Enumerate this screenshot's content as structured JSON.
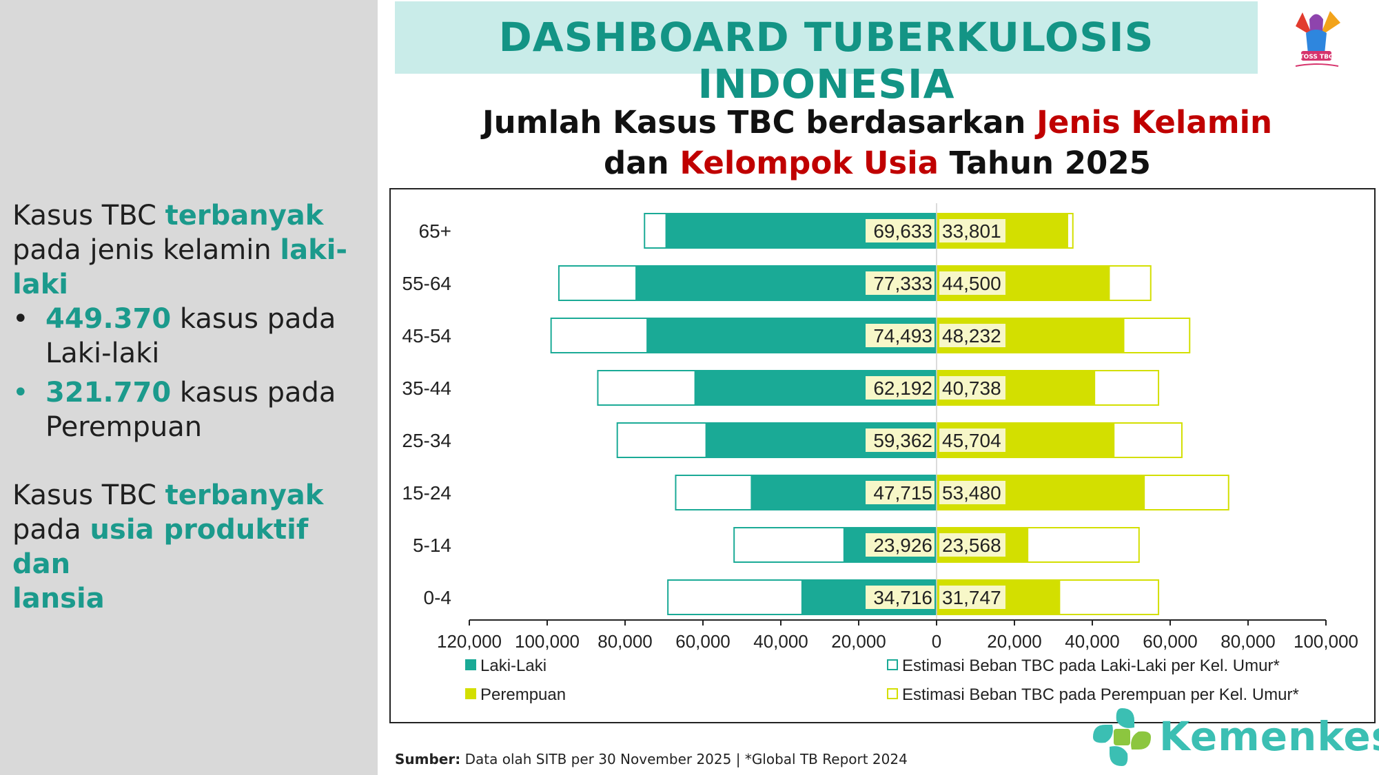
{
  "header": {
    "title": "DASHBOARD TUBERKULOSIS INDONESIA",
    "logo_text": "TOSS TBC"
  },
  "chart_heading": {
    "line1_part1": "Jumlah Kasus TBC berdasarkan ",
    "line1_part2": "Jenis Kelamin",
    "line2_part1": "dan ",
    "line2_part2": "Kelompok Usia",
    "line2_part3": " Tahun 2025"
  },
  "sidebar": {
    "p1_a": "Kasus TBC ",
    "p1_b": "terbanyak",
    "p1_c": "pada jenis kelamin ",
    "p1_d": "laki-",
    "p1_e": "laki",
    "bullet_char": "•",
    "b1_num": "449.370",
    "b1_text1": " kasus pada",
    "b1_text2": "Laki-laki",
    "b2_num": "321.770",
    "b2_text1": " kasus pada",
    "b2_text2": "Perempuan",
    "p2_a": "Kasus TBC ",
    "p2_b": "terbanyak",
    "p2_c": "pada ",
    "p2_d": "usia produktif dan",
    "p2_e": "lansia"
  },
  "chart_data": {
    "type": "bar",
    "orientation": "horizontal-population-pyramid",
    "categories": [
      "65+",
      "55-64",
      "45-54",
      "35-44",
      "25-34",
      "15-24",
      "5-14",
      "0-4"
    ],
    "series": [
      {
        "name": "Laki-Laki",
        "side": "left",
        "color": "#1aaa96",
        "values": [
          69633,
          77333,
          74493,
          62192,
          59362,
          47715,
          23926,
          34716
        ]
      },
      {
        "name": "Perempuan",
        "side": "right",
        "color": "#d3df00",
        "values": [
          33801,
          44500,
          48232,
          40738,
          45704,
          53480,
          23568,
          31747
        ]
      },
      {
        "name": "Estimasi Beban TBC pada Laki-Laki per Kel. Umur*",
        "side": "left",
        "color": "#1aaa96",
        "outline": true,
        "values": [
          75000,
          97000,
          99000,
          87000,
          82000,
          67000,
          52000,
          69000
        ]
      },
      {
        "name": "Estimasi Beban TBC pada Perempuan per Kel. Umur*",
        "side": "right",
        "color": "#d3df00",
        "outline": true,
        "values": [
          35000,
          55000,
          65000,
          57000,
          63000,
          75000,
          52000,
          57000
        ]
      }
    ],
    "data_labels_left": [
      "69,633",
      "77,333",
      "74,493",
      "62,192",
      "59,362",
      "47,715",
      "23,926",
      "34,716"
    ],
    "data_labels_right": [
      "33,801",
      "44,500",
      "48,232",
      "40,738",
      "45,704",
      "53,480",
      "23,568",
      "31,747"
    ],
    "xlim": [
      -120000,
      100000
    ],
    "x_ticks": [
      -120000,
      -100000,
      -80000,
      -60000,
      -40000,
      -20000,
      0,
      20000,
      40000,
      60000,
      80000,
      100000
    ],
    "x_tick_labels": [
      "120,000",
      "100,000",
      "80,000",
      "60,000",
      "40,000",
      "20,000",
      "0",
      "20,000",
      "40,000",
      "60,000",
      "80,000",
      "100,000"
    ],
    "legend_position": "bottom",
    "grid": false
  },
  "source": {
    "label": "Sumber:",
    "text": " Data olah SITB per 30 November 2025 | *Global TB Report 2024"
  },
  "brand": {
    "name": "Kemenkes"
  },
  "colors": {
    "teal": "#1aaa96",
    "lime": "#d3df00",
    "accent_red": "#c00000",
    "header_bg": "#c9ece9"
  }
}
